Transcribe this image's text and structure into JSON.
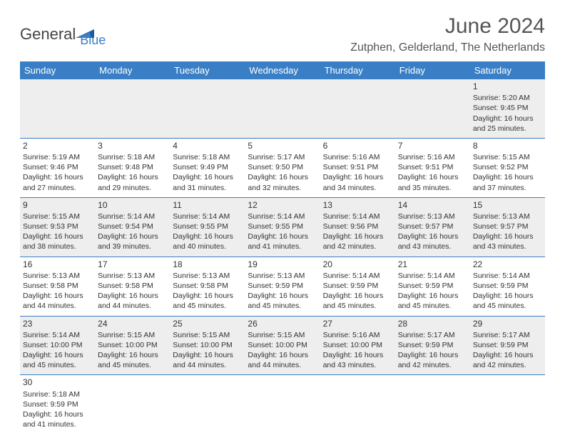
{
  "logo": {
    "general": "General",
    "blue": "Blue"
  },
  "title": "June 2024",
  "location": "Zutphen, Gelderland, The Netherlands",
  "colors": {
    "header_bg": "#3a7fc5",
    "row_alt_bg": "#eeeeee",
    "text": "#333333"
  },
  "weekdays": [
    "Sunday",
    "Monday",
    "Tuesday",
    "Wednesday",
    "Thursday",
    "Friday",
    "Saturday"
  ],
  "weeks": [
    [
      null,
      null,
      null,
      null,
      null,
      null,
      {
        "n": "1",
        "sr": "Sunrise: 5:20 AM",
        "ss": "Sunset: 9:45 PM",
        "d1": "Daylight: 16 hours",
        "d2": "and 25 minutes."
      }
    ],
    [
      {
        "n": "2",
        "sr": "Sunrise: 5:19 AM",
        "ss": "Sunset: 9:46 PM",
        "d1": "Daylight: 16 hours",
        "d2": "and 27 minutes."
      },
      {
        "n": "3",
        "sr": "Sunrise: 5:18 AM",
        "ss": "Sunset: 9:48 PM",
        "d1": "Daylight: 16 hours",
        "d2": "and 29 minutes."
      },
      {
        "n": "4",
        "sr": "Sunrise: 5:18 AM",
        "ss": "Sunset: 9:49 PM",
        "d1": "Daylight: 16 hours",
        "d2": "and 31 minutes."
      },
      {
        "n": "5",
        "sr": "Sunrise: 5:17 AM",
        "ss": "Sunset: 9:50 PM",
        "d1": "Daylight: 16 hours",
        "d2": "and 32 minutes."
      },
      {
        "n": "6",
        "sr": "Sunrise: 5:16 AM",
        "ss": "Sunset: 9:51 PM",
        "d1": "Daylight: 16 hours",
        "d2": "and 34 minutes."
      },
      {
        "n": "7",
        "sr": "Sunrise: 5:16 AM",
        "ss": "Sunset: 9:51 PM",
        "d1": "Daylight: 16 hours",
        "d2": "and 35 minutes."
      },
      {
        "n": "8",
        "sr": "Sunrise: 5:15 AM",
        "ss": "Sunset: 9:52 PM",
        "d1": "Daylight: 16 hours",
        "d2": "and 37 minutes."
      }
    ],
    [
      {
        "n": "9",
        "sr": "Sunrise: 5:15 AM",
        "ss": "Sunset: 9:53 PM",
        "d1": "Daylight: 16 hours",
        "d2": "and 38 minutes."
      },
      {
        "n": "10",
        "sr": "Sunrise: 5:14 AM",
        "ss": "Sunset: 9:54 PM",
        "d1": "Daylight: 16 hours",
        "d2": "and 39 minutes."
      },
      {
        "n": "11",
        "sr": "Sunrise: 5:14 AM",
        "ss": "Sunset: 9:55 PM",
        "d1": "Daylight: 16 hours",
        "d2": "and 40 minutes."
      },
      {
        "n": "12",
        "sr": "Sunrise: 5:14 AM",
        "ss": "Sunset: 9:55 PM",
        "d1": "Daylight: 16 hours",
        "d2": "and 41 minutes."
      },
      {
        "n": "13",
        "sr": "Sunrise: 5:14 AM",
        "ss": "Sunset: 9:56 PM",
        "d1": "Daylight: 16 hours",
        "d2": "and 42 minutes."
      },
      {
        "n": "14",
        "sr": "Sunrise: 5:13 AM",
        "ss": "Sunset: 9:57 PM",
        "d1": "Daylight: 16 hours",
        "d2": "and 43 minutes."
      },
      {
        "n": "15",
        "sr": "Sunrise: 5:13 AM",
        "ss": "Sunset: 9:57 PM",
        "d1": "Daylight: 16 hours",
        "d2": "and 43 minutes."
      }
    ],
    [
      {
        "n": "16",
        "sr": "Sunrise: 5:13 AM",
        "ss": "Sunset: 9:58 PM",
        "d1": "Daylight: 16 hours",
        "d2": "and 44 minutes."
      },
      {
        "n": "17",
        "sr": "Sunrise: 5:13 AM",
        "ss": "Sunset: 9:58 PM",
        "d1": "Daylight: 16 hours",
        "d2": "and 44 minutes."
      },
      {
        "n": "18",
        "sr": "Sunrise: 5:13 AM",
        "ss": "Sunset: 9:58 PM",
        "d1": "Daylight: 16 hours",
        "d2": "and 45 minutes."
      },
      {
        "n": "19",
        "sr": "Sunrise: 5:13 AM",
        "ss": "Sunset: 9:59 PM",
        "d1": "Daylight: 16 hours",
        "d2": "and 45 minutes."
      },
      {
        "n": "20",
        "sr": "Sunrise: 5:14 AM",
        "ss": "Sunset: 9:59 PM",
        "d1": "Daylight: 16 hours",
        "d2": "and 45 minutes."
      },
      {
        "n": "21",
        "sr": "Sunrise: 5:14 AM",
        "ss": "Sunset: 9:59 PM",
        "d1": "Daylight: 16 hours",
        "d2": "and 45 minutes."
      },
      {
        "n": "22",
        "sr": "Sunrise: 5:14 AM",
        "ss": "Sunset: 9:59 PM",
        "d1": "Daylight: 16 hours",
        "d2": "and 45 minutes."
      }
    ],
    [
      {
        "n": "23",
        "sr": "Sunrise: 5:14 AM",
        "ss": "Sunset: 10:00 PM",
        "d1": "Daylight: 16 hours",
        "d2": "and 45 minutes."
      },
      {
        "n": "24",
        "sr": "Sunrise: 5:15 AM",
        "ss": "Sunset: 10:00 PM",
        "d1": "Daylight: 16 hours",
        "d2": "and 45 minutes."
      },
      {
        "n": "25",
        "sr": "Sunrise: 5:15 AM",
        "ss": "Sunset: 10:00 PM",
        "d1": "Daylight: 16 hours",
        "d2": "and 44 minutes."
      },
      {
        "n": "26",
        "sr": "Sunrise: 5:15 AM",
        "ss": "Sunset: 10:00 PM",
        "d1": "Daylight: 16 hours",
        "d2": "and 44 minutes."
      },
      {
        "n": "27",
        "sr": "Sunrise: 5:16 AM",
        "ss": "Sunset: 10:00 PM",
        "d1": "Daylight: 16 hours",
        "d2": "and 43 minutes."
      },
      {
        "n": "28",
        "sr": "Sunrise: 5:17 AM",
        "ss": "Sunset: 9:59 PM",
        "d1": "Daylight: 16 hours",
        "d2": "and 42 minutes."
      },
      {
        "n": "29",
        "sr": "Sunrise: 5:17 AM",
        "ss": "Sunset: 9:59 PM",
        "d1": "Daylight: 16 hours",
        "d2": "and 42 minutes."
      }
    ],
    [
      {
        "n": "30",
        "sr": "Sunrise: 5:18 AM",
        "ss": "Sunset: 9:59 PM",
        "d1": "Daylight: 16 hours",
        "d2": "and 41 minutes."
      },
      null,
      null,
      null,
      null,
      null,
      null
    ]
  ]
}
